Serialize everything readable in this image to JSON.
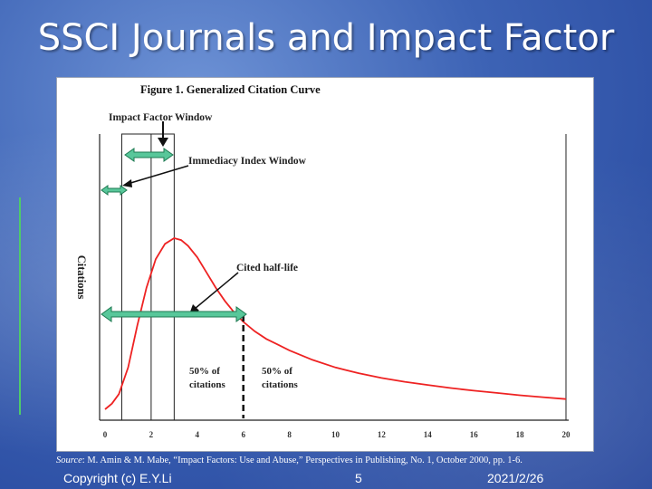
{
  "slide": {
    "title": "SSCI Journals and Impact Factor",
    "source_label": "Source",
    "source_text": ": M. Amin & M. Mabe, “Impact Factors: Use and Abuse,” Perspectives in Publishing, No. 1, October 2000, pp. 1-6."
  },
  "footer": {
    "copyright": "Copyright (c) E.Y.Li",
    "page": "5",
    "date": "2021/2/26"
  },
  "chart_data": {
    "type": "line",
    "title": "Figure 1. Generalized Citation Curve",
    "ylabel": "Citations",
    "xlabel": "",
    "x_ticks": [
      "0",
      "2",
      "4",
      "6",
      "8",
      "10",
      "12",
      "14",
      "16",
      "18",
      "20"
    ],
    "xlim": [
      0,
      20
    ],
    "ylim": [
      0,
      1
    ],
    "series": [
      {
        "name": "Citation curve",
        "x": [
          0,
          0.3,
          0.6,
          1.0,
          1.4,
          1.8,
          2.2,
          2.6,
          3.0,
          3.3,
          3.6,
          4.0,
          4.4,
          4.8,
          5.2,
          5.6,
          6.0,
          6.5,
          7.0,
          7.5,
          8.0,
          9.0,
          10.0,
          11.0,
          12.0,
          13.0,
          14.0,
          15.0,
          16.0,
          17.0,
          18.0,
          19.0,
          20.0
        ],
        "y": [
          0.0,
          0.03,
          0.08,
          0.22,
          0.44,
          0.64,
          0.79,
          0.87,
          0.9,
          0.89,
          0.86,
          0.8,
          0.72,
          0.64,
          0.57,
          0.51,
          0.46,
          0.41,
          0.37,
          0.34,
          0.31,
          0.26,
          0.22,
          0.19,
          0.165,
          0.145,
          0.128,
          0.112,
          0.098,
          0.086,
          0.074,
          0.064,
          0.054
        ],
        "color": "#ee2222"
      }
    ],
    "windows": {
      "impact_factor": {
        "label": "Impact Factor Window",
        "x_range": [
          1,
          3
        ]
      },
      "immediacy_index": {
        "label": "Immediacy Index Window",
        "x_range": [
          0,
          1
        ]
      }
    },
    "half_life": {
      "label": "Cited half-life",
      "x": 6
    },
    "annotations": {
      "left_share_line1": "50% of",
      "left_share_line2": "citations",
      "right_share_line1": "50% of",
      "right_share_line2": "citations"
    },
    "colors": {
      "arrow_fill": "#58c79a",
      "arrow_outline": "#1e7a52",
      "curve": "#ee2222"
    }
  }
}
